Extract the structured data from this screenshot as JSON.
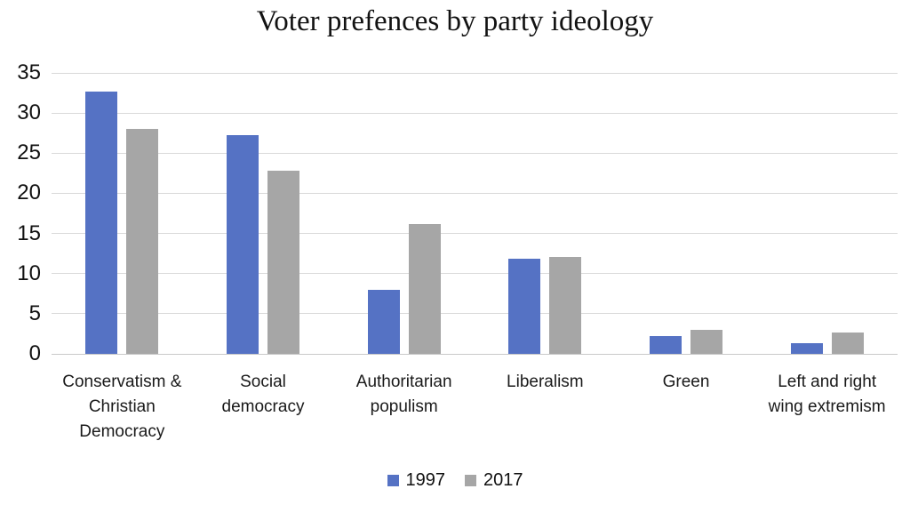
{
  "title": "Voter prefences by party ideology",
  "colors": {
    "series_1997": "#5572c4",
    "series_2017": "#a6a6a6",
    "gridline": "#d9d9d9",
    "text": "#1a1a1a"
  },
  "chart_data": {
    "type": "bar",
    "title": "Voter prefences by party ideology",
    "categories": [
      "Conservatism & Christian Democracy",
      "Social democracy",
      "Authoritarian populism",
      "Liberalism",
      "Green",
      "Left and right wing extremism"
    ],
    "category_label_lines": [
      [
        "Conservatism &",
        "Christian",
        "Democracy"
      ],
      [
        "Social",
        "democracy"
      ],
      [
        "Authoritarian",
        "populism"
      ],
      [
        "Liberalism"
      ],
      [
        "Green"
      ],
      [
        "Left and right",
        "wing extremism"
      ]
    ],
    "series": [
      {
        "name": "1997",
        "color": "#5572c4",
        "values": [
          32.7,
          27.2,
          8.0,
          11.9,
          2.2,
          1.3
        ]
      },
      {
        "name": "2017",
        "color": "#a6a6a6",
        "values": [
          28.0,
          22.8,
          16.2,
          12.1,
          3.0,
          2.7
        ]
      }
    ],
    "xlabel": "",
    "ylabel": "",
    "ylim": [
      0,
      35
    ],
    "yticks": [
      0,
      5,
      10,
      15,
      20,
      25,
      30,
      35
    ],
    "grid": true,
    "legend_position": "bottom"
  },
  "legend": {
    "items": [
      {
        "label": "1997",
        "color": "#5572c4"
      },
      {
        "label": "2017",
        "color": "#a6a6a6"
      }
    ]
  }
}
